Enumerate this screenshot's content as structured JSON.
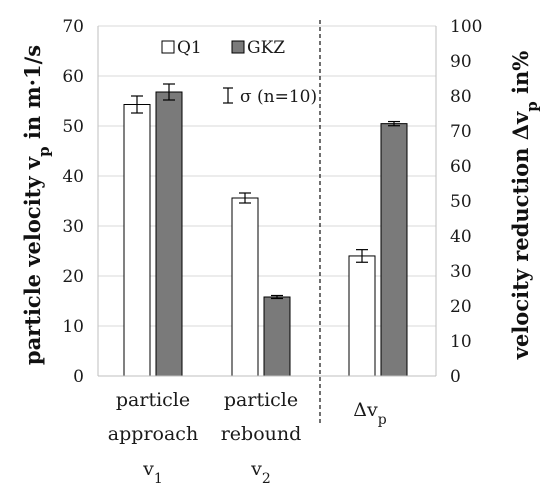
{
  "chart_data": {
    "type": "bar",
    "left_axis": {
      "title_main": "particle velocity v",
      "title_sub": "p",
      "title_unit": " in m·1/s",
      "ylim": [
        0,
        70
      ],
      "ticks": [
        "0",
        "10",
        "20",
        "30",
        "40",
        "50",
        "60",
        "70"
      ]
    },
    "right_axis": {
      "title_main": "velocity reduction Δv",
      "title_sub": "p",
      "title_unit": " in%",
      "ylim": [
        0,
        100
      ],
      "ticks": [
        "0",
        "10",
        "20",
        "30",
        "40",
        "50",
        "60",
        "70",
        "80",
        "90",
        "100"
      ]
    },
    "categories": [
      {
        "lines": [
          "particle",
          "approach"
        ],
        "symbol": "v",
        "sub": "1",
        "axis": "left"
      },
      {
        "lines": [
          "particle",
          "rebound"
        ],
        "symbol": "v",
        "sub": "2",
        "axis": "left"
      },
      {
        "lines": [],
        "symbol": "Δv",
        "sub": "p",
        "axis": "right"
      }
    ],
    "series": [
      {
        "name": "Q1",
        "color": "#ffffff",
        "values": [
          54.3,
          35.6,
          34.3
        ],
        "errors": [
          1.7,
          1.0,
          1.8
        ]
      },
      {
        "name": "GKZ",
        "color": "#7a7a7a",
        "values": [
          56.8,
          15.8,
          72.1
        ],
        "errors": [
          1.6,
          0.3,
          0.6
        ]
      }
    ],
    "legend": {
      "position": "top",
      "errorbar_label": "σ (n=10)"
    },
    "grid": true
  }
}
